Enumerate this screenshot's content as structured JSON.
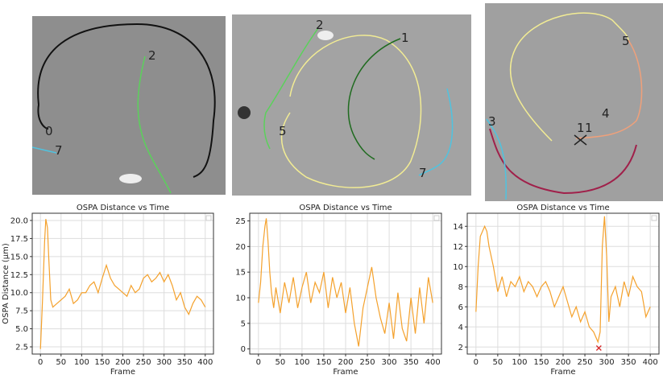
{
  "panels": [
    {
      "labels": [
        "0",
        "7",
        "2"
      ]
    },
    {
      "labels": [
        "2",
        "1",
        "5",
        "7"
      ]
    },
    {
      "labels": [
        "5",
        "4",
        "3",
        "1",
        "1"
      ]
    }
  ],
  "chart_data": [
    {
      "type": "line",
      "title": "OSPA Distance vs Time",
      "xlabel": "Frame",
      "ylabel": "OSPA Distance (μm)",
      "color": "#f4a12c",
      "grid": true,
      "xlim": [
        -20,
        420
      ],
      "xticks": [
        0,
        50,
        100,
        150,
        200,
        250,
        300,
        350,
        400
      ],
      "ylim": [
        1.5,
        21
      ],
      "yticks": [
        {
          "value": 2.5,
          "label": "2.5"
        },
        {
          "value": 5,
          "label": "5.0"
        },
        {
          "value": 7.5,
          "label": "7.5"
        },
        {
          "value": 10,
          "label": "10.0"
        },
        {
          "value": 12.5,
          "label": "12.5"
        },
        {
          "value": 15,
          "label": "15.0"
        },
        {
          "value": 17.5,
          "label": "17.5"
        },
        {
          "value": 20,
          "label": "20.0"
        }
      ],
      "x": [
        0,
        5,
        10,
        13,
        17,
        20,
        25,
        30,
        40,
        50,
        60,
        70,
        80,
        90,
        100,
        110,
        120,
        130,
        140,
        150,
        160,
        170,
        180,
        190,
        200,
        210,
        220,
        230,
        240,
        250,
        260,
        270,
        280,
        290,
        300,
        310,
        320,
        330,
        340,
        350,
        360,
        370,
        380,
        390,
        400
      ],
      "values": [
        2.2,
        9,
        17,
        20.2,
        19,
        15,
        9,
        8,
        8.5,
        9,
        9.5,
        10.5,
        8.5,
        9,
        10,
        10,
        11,
        11.5,
        10,
        12,
        13.8,
        12,
        11,
        10.5,
        10,
        9.5,
        11,
        10,
        10.5,
        12,
        12.5,
        11.5,
        12,
        12.8,
        11.5,
        12.5,
        11,
        9,
        10,
        8,
        7,
        8.5,
        9.5,
        9,
        8
      ]
    },
    {
      "type": "line",
      "title": "OSPA Distance vs Time",
      "xlabel": "Frame",
      "color": "#f4a12c",
      "grid": true,
      "xlim": [
        -20,
        420
      ],
      "xticks": [
        0,
        50,
        100,
        150,
        200,
        250,
        300,
        350,
        400
      ],
      "ylim": [
        -1,
        26.5
      ],
      "yticks": [
        0,
        5,
        10,
        15,
        20,
        25
      ],
      "x": [
        0,
        5,
        10,
        15,
        18,
        22,
        26,
        30,
        35,
        40,
        50,
        60,
        70,
        80,
        90,
        100,
        110,
        120,
        130,
        140,
        150,
        160,
        170,
        180,
        190,
        200,
        210,
        220,
        230,
        240,
        250,
        260,
        270,
        280,
        290,
        300,
        310,
        320,
        330,
        340,
        350,
        360,
        370,
        380,
        390,
        400
      ],
      "values": [
        9,
        13,
        20,
        24,
        25.5,
        21,
        15,
        11,
        8,
        12,
        7,
        13,
        9,
        14,
        8,
        12,
        15,
        9,
        13,
        11,
        15,
        8,
        14,
        10,
        13,
        7,
        12,
        5,
        0.5,
        8,
        12,
        16,
        10,
        6,
        3,
        9,
        2,
        11,
        4,
        1.5,
        10,
        3,
        12,
        5,
        14,
        9
      ]
    },
    {
      "type": "line",
      "title": "OSPA Distance vs Time",
      "xlabel": "Frame",
      "color": "#f4a12c",
      "grid": true,
      "xlim": [
        -20,
        420
      ],
      "xticks": [
        0,
        50,
        100,
        150,
        200,
        250,
        300,
        350,
        400
      ],
      "ylim": [
        1.3,
        15.3
      ],
      "yticks": [
        2,
        4,
        6,
        8,
        10,
        12,
        14
      ],
      "x": [
        0,
        5,
        10,
        15,
        20,
        25,
        30,
        40,
        50,
        60,
        70,
        80,
        90,
        100,
        110,
        120,
        130,
        140,
        150,
        160,
        170,
        180,
        190,
        200,
        210,
        220,
        230,
        240,
        250,
        260,
        270,
        280,
        285,
        290,
        295,
        300,
        305,
        310,
        320,
        330,
        340,
        350,
        360,
        370,
        380,
        390,
        400
      ],
      "values": [
        5.5,
        10,
        13,
        13.5,
        14,
        13.5,
        12,
        10,
        7.5,
        9,
        7,
        8.5,
        8,
        9,
        7.5,
        8.5,
        8,
        7,
        8,
        8.5,
        7.5,
        6,
        7,
        8,
        6.5,
        5,
        6,
        4.5,
        5.5,
        4,
        3.5,
        2.5,
        3.5,
        12,
        15,
        11,
        4.5,
        7,
        8,
        6,
        8.5,
        7,
        9,
        8,
        7.5,
        5,
        6
      ],
      "marker": {
        "x": 282,
        "y": 1.9,
        "color": "#d62728"
      }
    }
  ]
}
